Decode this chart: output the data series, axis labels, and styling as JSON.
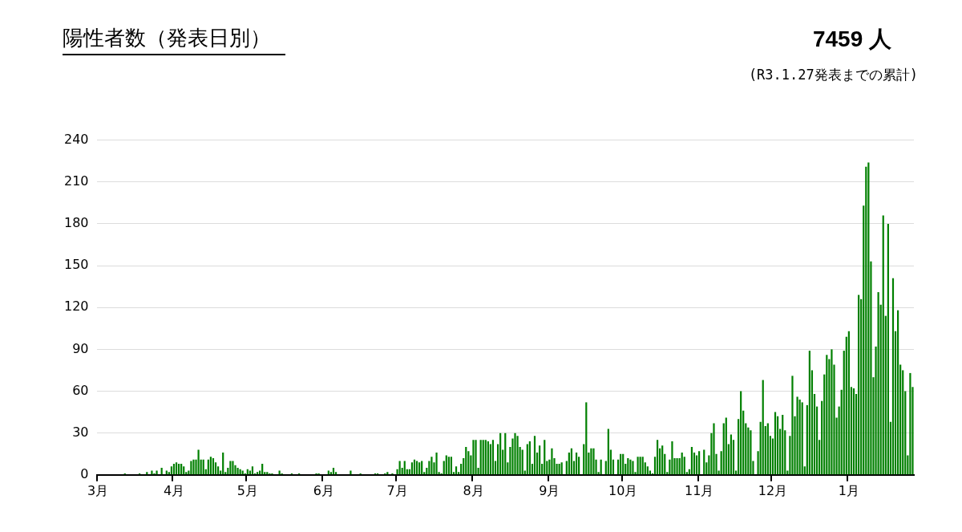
{
  "chart_data": {
    "type": "bar",
    "title": "陽性者数（発表日別）",
    "annotations": [
      "7459 人",
      "(R3.1.27発表までの累計)"
    ],
    "categories": [
      "3月",
      null,
      null,
      null,
      null,
      null,
      null,
      null,
      null,
      null,
      null,
      null,
      null,
      null,
      null,
      null,
      null,
      null,
      null,
      null,
      null,
      null,
      null,
      null,
      null,
      null,
      null,
      null,
      null,
      null,
      null,
      "4月",
      null,
      null,
      null,
      null,
      null,
      null,
      null,
      null,
      null,
      null,
      null,
      null,
      null,
      null,
      null,
      null,
      null,
      null,
      null,
      null,
      null,
      null,
      null,
      null,
      null,
      null,
      null,
      null,
      null,
      "5月",
      null,
      null,
      null,
      null,
      null,
      null,
      null,
      null,
      null,
      null,
      null,
      null,
      null,
      null,
      null,
      null,
      null,
      null,
      null,
      null,
      null,
      null,
      null,
      null,
      null,
      null,
      null,
      null,
      null,
      null,
      "6月",
      null,
      null,
      null,
      null,
      null,
      null,
      null,
      null,
      null,
      null,
      null,
      null,
      null,
      null,
      null,
      null,
      null,
      null,
      null,
      null,
      null,
      null,
      null,
      null,
      null,
      null,
      null,
      null,
      null,
      "7月",
      null,
      null,
      null,
      null,
      null,
      null,
      null,
      null,
      null,
      null,
      null,
      null,
      null,
      null,
      null,
      null,
      null,
      null,
      null,
      null,
      null,
      null,
      null,
      null,
      null,
      null,
      null,
      null,
      null,
      null,
      "8月",
      null,
      null,
      null,
      null,
      null,
      null,
      null,
      null,
      null,
      null,
      null,
      null,
      null,
      null,
      null,
      null,
      null,
      null,
      null,
      null,
      null,
      null,
      null,
      null,
      null,
      null,
      null,
      null,
      null,
      null,
      "9月",
      null,
      null,
      null,
      null,
      null,
      null,
      null,
      null,
      null,
      null,
      null,
      null,
      null,
      null,
      null,
      null,
      null,
      null,
      null,
      null,
      null,
      null,
      null,
      null,
      null,
      null,
      null,
      null,
      null,
      "10月",
      null,
      null,
      null,
      null,
      null,
      null,
      null,
      null,
      null,
      null,
      null,
      null,
      null,
      null,
      null,
      null,
      null,
      null,
      null,
      null,
      null,
      null,
      null,
      null,
      null,
      null,
      null,
      null,
      null,
      null,
      "11月",
      null,
      null,
      null,
      null,
      null,
      null,
      null,
      null,
      null,
      null,
      null,
      null,
      null,
      null,
      null,
      null,
      null,
      null,
      null,
      null,
      null,
      null,
      null,
      null,
      null,
      null,
      null,
      null,
      null,
      "12月",
      null,
      null,
      null,
      null,
      null,
      null,
      null,
      null,
      null,
      null,
      null,
      null,
      null,
      null,
      null,
      null,
      null,
      null,
      null,
      null,
      null,
      null,
      null,
      null,
      null,
      null,
      null,
      null,
      null,
      null,
      "1月",
      null,
      null,
      null,
      null,
      null,
      null,
      null,
      null,
      null,
      null,
      null,
      null,
      null,
      null,
      null,
      null,
      null,
      null,
      null,
      null,
      null,
      null,
      null,
      null,
      null,
      null
    ],
    "values": [
      0,
      0,
      0,
      0,
      0,
      0,
      0,
      0,
      0,
      0,
      0,
      1,
      0,
      0,
      0,
      0,
      0,
      1,
      0,
      0,
      2,
      0,
      3,
      1,
      3,
      0,
      5,
      0,
      3,
      2,
      6,
      8,
      9,
      8,
      8,
      6,
      2,
      3,
      10,
      11,
      11,
      18,
      11,
      11,
      4,
      11,
      13,
      12,
      9,
      6,
      3,
      16,
      2,
      5,
      10,
      10,
      7,
      5,
      4,
      3,
      1,
      4,
      3,
      6,
      1,
      2,
      3,
      8,
      2,
      2,
      1,
      1,
      0,
      0,
      3,
      1,
      0,
      0,
      0,
      1,
      0,
      0,
      1,
      0,
      0,
      0,
      0,
      0,
      0,
      1,
      1,
      0,
      0,
      0,
      3,
      2,
      5,
      2,
      0,
      0,
      0,
      0,
      0,
      3,
      0,
      0,
      0,
      1,
      0,
      0,
      0,
      0,
      0,
      1,
      1,
      0,
      0,
      1,
      2,
      0,
      1,
      0,
      4,
      10,
      5,
      10,
      4,
      4,
      9,
      11,
      10,
      9,
      10,
      2,
      5,
      10,
      13,
      9,
      16,
      2,
      1,
      10,
      14,
      13,
      13,
      2,
      6,
      2,
      8,
      12,
      20,
      17,
      14,
      25,
      25,
      5,
      25,
      25,
      25,
      24,
      22,
      25,
      10,
      22,
      30,
      18,
      30,
      9,
      20,
      26,
      30,
      28,
      20,
      18,
      3,
      22,
      24,
      8,
      28,
      16,
      21,
      8,
      25,
      10,
      11,
      19,
      12,
      8,
      8,
      9,
      0,
      10,
      16,
      19,
      10,
      16,
      13,
      0,
      22,
      52,
      16,
      19,
      19,
      11,
      2,
      11,
      0,
      10,
      33,
      18,
      11,
      0,
      11,
      15,
      15,
      8,
      12,
      11,
      10,
      2,
      13,
      13,
      13,
      9,
      6,
      3,
      1,
      13,
      25,
      19,
      21,
      15,
      2,
      11,
      24,
      12,
      12,
      12,
      16,
      13,
      2,
      4,
      20,
      16,
      14,
      17,
      0,
      18,
      9,
      14,
      30,
      37,
      15,
      3,
      17,
      37,
      41,
      22,
      29,
      25,
      3,
      40,
      60,
      46,
      37,
      34,
      32,
      10,
      0,
      17,
      38,
      68,
      35,
      37,
      28,
      26,
      45,
      42,
      33,
      43,
      32,
      3,
      28,
      71,
      42,
      56,
      54,
      52,
      6,
      50,
      89,
      75,
      58,
      49,
      25,
      53,
      72,
      86,
      83,
      90,
      79,
      41,
      49,
      61,
      89,
      99,
      103,
      63,
      62,
      58,
      129,
      126,
      193,
      221,
      224,
      153,
      70,
      92,
      131,
      122,
      186,
      114,
      180,
      38,
      141,
      103,
      118,
      79,
      75,
      60,
      14,
      73,
      63
    ],
    "color": "#008000",
    "ylim": [
      0,
      240
    ],
    "yticks": [
      0,
      30,
      60,
      90,
      120,
      150,
      180,
      210,
      240
    ],
    "grid": "y",
    "legend": false
  }
}
